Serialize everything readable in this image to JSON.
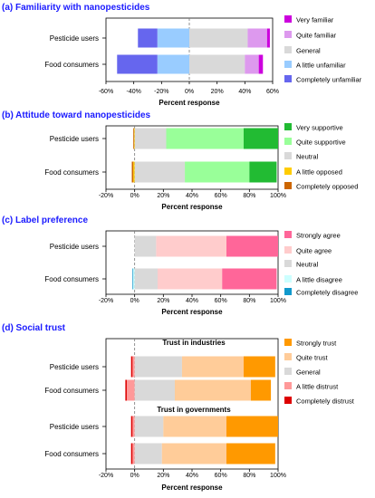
{
  "figure": {
    "panels": [
      {
        "title": "(a) Familiarity with nanopesticides"
      },
      {
        "title": "(b) Attitude toward nanopesticides"
      },
      {
        "title": "(c) Label preference"
      },
      {
        "title": "(d) Social trust"
      }
    ]
  },
  "chart_data": [
    {
      "type": "bar",
      "orientation": "horizontal",
      "stacked": "diverging",
      "title": "(a) Familiarity with nanopesticides",
      "xlabel": "Percent response",
      "xlim": [
        -60,
        60
      ],
      "xticks": [
        "-60%",
        "-40%",
        "-20%",
        "0%",
        "20%",
        "40%",
        "60%"
      ],
      "legend_position": "right",
      "categories": [
        "Pesticide users",
        "Food consumers"
      ],
      "series": [
        {
          "name": "Completely unfamiliar",
          "color": "#6666ee",
          "values": [
            -14,
            -29
          ]
        },
        {
          "name": "A little unfamiliar",
          "color": "#99ccff",
          "values": [
            -23,
            -23
          ]
        },
        {
          "name": "General",
          "color": "#d9d9d9",
          "values": [
            42,
            40
          ]
        },
        {
          "name": "Quite familiar",
          "color": "#dd99ee",
          "values": [
            14,
            10
          ]
        },
        {
          "name": "Very familiar",
          "color": "#cc00dd",
          "values": [
            2,
            3
          ]
        }
      ],
      "legend": [
        "Very familiar",
        "Quite familiar",
        "General",
        "A little unfamiliar",
        "Completely unfamiliar"
      ],
      "groups": []
    },
    {
      "type": "bar",
      "orientation": "horizontal",
      "stacked": "diverging",
      "title": "(b) Attitude toward nanopesticides",
      "xlabel": "Percent response",
      "xlim": [
        -20,
        100
      ],
      "xticks": [
        "-20%",
        "0%",
        "20%",
        "40%",
        "60%",
        "80%",
        "100%"
      ],
      "legend_position": "right",
      "categories": [
        "Pesticide users",
        "Food consumers"
      ],
      "series": [
        {
          "name": "Completely opposed",
          "color": "#cc6600",
          "values": [
            -0.5,
            -1
          ]
        },
        {
          "name": "A little opposed",
          "color": "#ffcc00",
          "values": [
            -0.5,
            -1
          ]
        },
        {
          "name": "Neutral",
          "color": "#d9d9d9",
          "values": [
            22,
            35
          ]
        },
        {
          "name": "Quite supportive",
          "color": "#99ff99",
          "values": [
            54,
            45
          ]
        },
        {
          "name": "Very supportive",
          "color": "#22bb33",
          "values": [
            24,
            19
          ]
        }
      ],
      "legend": [
        "Very supportive",
        "Quite supportive",
        "Neutral",
        "A little opposed",
        "Completely opposed"
      ],
      "groups": []
    },
    {
      "type": "bar",
      "orientation": "horizontal",
      "stacked": "diverging",
      "title": "(c) Label preference",
      "xlabel": "Percent response",
      "xlim": [
        -20,
        100
      ],
      "xticks": [
        "-20%",
        "0%",
        "20%",
        "40%",
        "60%",
        "80%",
        "100%"
      ],
      "legend_position": "right",
      "categories": [
        "Pesticide users",
        "Food consumers"
      ],
      "series": [
        {
          "name": "Completely disagree",
          "color": "#1199cc",
          "values": [
            0,
            -0.5
          ]
        },
        {
          "name": "A little disagree",
          "color": "#ccffff",
          "values": [
            0,
            -1
          ]
        },
        {
          "name": "Neutral",
          "color": "#d9d9d9",
          "values": [
            15,
            16
          ]
        },
        {
          "name": "Quite agree",
          "color": "#ffcccc",
          "values": [
            49,
            45
          ]
        },
        {
          "name": "Strongly agree",
          "color": "#ff6699",
          "values": [
            36,
            38
          ]
        }
      ],
      "legend": [
        "Strongly agree",
        "Quite agree",
        "Neutral",
        "A little disagree",
        "Completely disagree"
      ],
      "groups": []
    },
    {
      "type": "bar",
      "orientation": "horizontal",
      "stacked": "diverging",
      "title": "(d) Social trust",
      "xlabel": "Percent response",
      "xlim": [
        -20,
        100
      ],
      "xticks": [
        "-20%",
        "0%",
        "20%",
        "40%",
        "60%",
        "80%",
        "100%"
      ],
      "legend_position": "right",
      "categories": [
        "Pesticide users",
        "Food consumers",
        "Pesticide users",
        "Food consumers"
      ],
      "series": [
        {
          "name": "Completely distrust",
          "color": "#dd0000",
          "values": [
            -1,
            -1,
            -1,
            -1
          ]
        },
        {
          "name": "A little distrust",
          "color": "#ff9999",
          "values": [
            -1.5,
            -5.5,
            -1.5,
            -1.5
          ]
        },
        {
          "name": "General",
          "color": "#d9d9d9",
          "values": [
            33,
            28,
            20,
            19
          ]
        },
        {
          "name": "Quite trust",
          "color": "#ffcc99",
          "values": [
            43,
            53,
            44,
            45
          ]
        },
        {
          "name": "Strongly trust",
          "color": "#ff9900",
          "values": [
            22,
            14,
            36,
            34
          ]
        }
      ],
      "legend": [
        "Strongly trust",
        "Quite trust",
        "General",
        "A little distrust",
        "Completely distrust"
      ],
      "groups": [
        {
          "label": "Trust in industries"
        },
        {
          "label": "Trust in governments"
        }
      ]
    }
  ]
}
